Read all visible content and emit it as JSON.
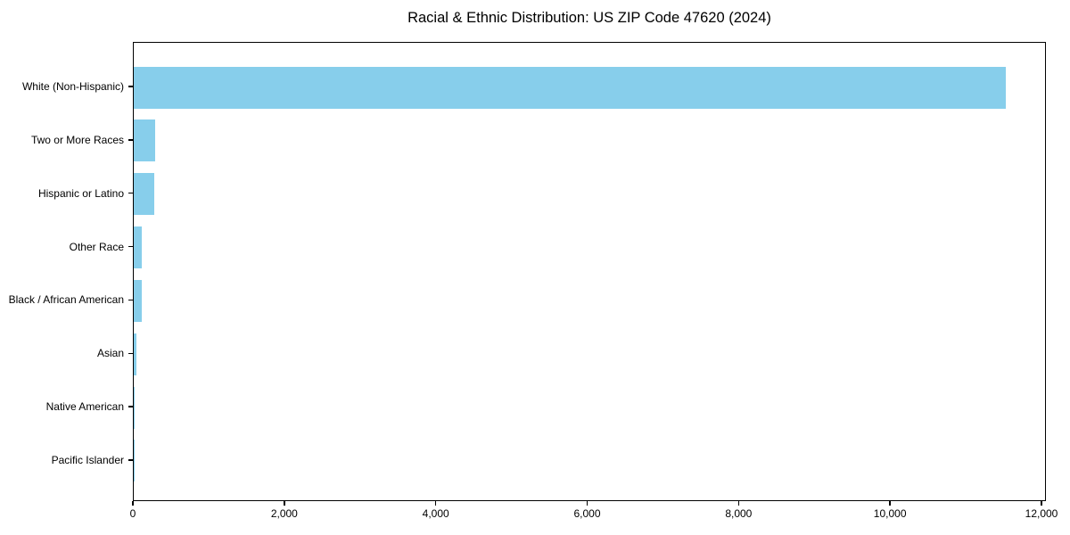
{
  "window": {
    "background_color": "#ffffff",
    "text_color": "#000000"
  },
  "chart_data": {
    "type": "bar",
    "orientation": "horizontal",
    "title": "Racial & Ethnic Distribution: US ZIP Code 47620 (2024)",
    "categories": [
      "White (Non-Hispanic)",
      "Two or More Races",
      "Hispanic or Latino",
      "Other Race",
      "Black / African American",
      "Asian",
      "Native American",
      "Pacific Islander"
    ],
    "values": [
      11520,
      280,
      270,
      110,
      105,
      40,
      15,
      2
    ],
    "xlabel": "",
    "ylabel": "",
    "xlim": [
      0,
      12060
    ],
    "xticks": [
      0,
      2000,
      4000,
      6000,
      8000,
      10000,
      12000
    ],
    "xtick_labels": [
      "0",
      "2,000",
      "4,000",
      "6,000",
      "8,000",
      "10,000",
      "12,000"
    ],
    "bar_color": "#87CEEB",
    "frame": true,
    "grid": false,
    "legend": null
  }
}
